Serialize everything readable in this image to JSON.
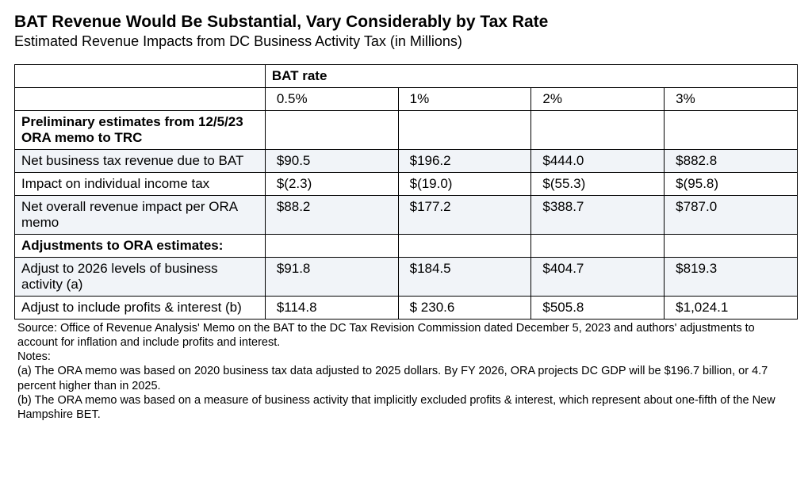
{
  "title": "BAT Revenue Would Be Substantial, Vary Considerably by Tax Rate",
  "subtitle": "Estimated Revenue Impacts from DC Business Activity Tax (in Millions)",
  "table": {
    "header_label": "BAT rate",
    "rate_labels": [
      "0.5%",
      "1%",
      "2%",
      "3%"
    ],
    "section1_header": "Preliminary estimates from 12/5/23 ORA memo to TRC",
    "section2_header": "Adjustments to ORA estimates:",
    "rows": [
      {
        "label": "Net business tax revenue due to BAT",
        "vals": [
          "$90.5",
          "$196.2",
          "$444.0",
          "$882.8"
        ],
        "shade": true
      },
      {
        "label": "Impact on individual income tax",
        "vals": [
          "$(2.3)",
          "$(19.0)",
          "$(55.3)",
          "$(95.8)"
        ],
        "shade": false
      },
      {
        "label": "Net overall revenue impact per ORA memo",
        "vals": [
          "$88.2",
          "$177.2",
          "$388.7",
          "$787.0"
        ],
        "shade": true
      }
    ],
    "rows2": [
      {
        "label": "Adjust to 2026 levels of business activity (a)",
        "vals": [
          "$91.8",
          "$184.5",
          "$404.7",
          "$819.3"
        ],
        "shade": true
      },
      {
        "label": "Adjust to include profits & interest (b)",
        "vals": [
          "$114.8",
          "$ 230.6",
          "$505.8",
          "$1,024.1"
        ],
        "shade": false
      }
    ]
  },
  "footnotes": {
    "source": "Source: Office of Revenue Analysis' Memo on the BAT to the DC Tax Revision Commission dated December 5, 2023 and authors' adjustments to account for inflation and include profits and interest.",
    "notes_label": "Notes:",
    "note_a": "(a) The ORA memo was based on 2020 business tax data adjusted to 2025 dollars. By FY 2026, ORA projects DC GDP will be $196.7 billion, or 4.7 percent higher than in 2025.",
    "note_b": "(b) The ORA memo was based on a measure of business activity that implicitly excluded profits & interest, which represent about one-fifth of the New Hampshire BET."
  }
}
